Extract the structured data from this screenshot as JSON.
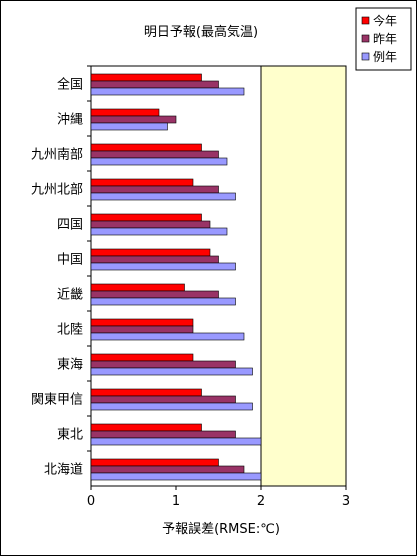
{
  "chart_data": {
    "type": "bar",
    "orientation": "horizontal",
    "title": "明日予報(最高気温)",
    "xlabel": "予報誤差(RMSE:℃)",
    "ylabel": "",
    "xlim": [
      0,
      3
    ],
    "xticks": [
      "0",
      "1",
      "2",
      "3"
    ],
    "grid": false,
    "legend": "top-right",
    "categories": [
      "全国",
      "沖縄",
      "九州南部",
      "九州北部",
      "四国",
      "中国",
      "近畿",
      "北陸",
      "東海",
      "関東甲信",
      "東北",
      "北海道"
    ],
    "series": [
      {
        "name": "今年",
        "color": "#ff0000",
        "values": [
          1.3,
          0.8,
          1.3,
          1.2,
          1.3,
          1.4,
          1.1,
          1.2,
          1.2,
          1.3,
          1.3,
          1.5
        ]
      },
      {
        "name": "昨年",
        "color": "#993366",
        "values": [
          1.5,
          1.0,
          1.5,
          1.5,
          1.4,
          1.5,
          1.5,
          1.2,
          1.7,
          1.7,
          1.7,
          1.8
        ]
      },
      {
        "name": "例年",
        "color": "#9999ff",
        "values": [
          1.8,
          0.9,
          1.6,
          1.7,
          1.6,
          1.7,
          1.7,
          1.8,
          1.9,
          1.9,
          2.0,
          2.0
        ]
      }
    ],
    "reference_line": 2,
    "highlight_color": "#ffffcc"
  }
}
